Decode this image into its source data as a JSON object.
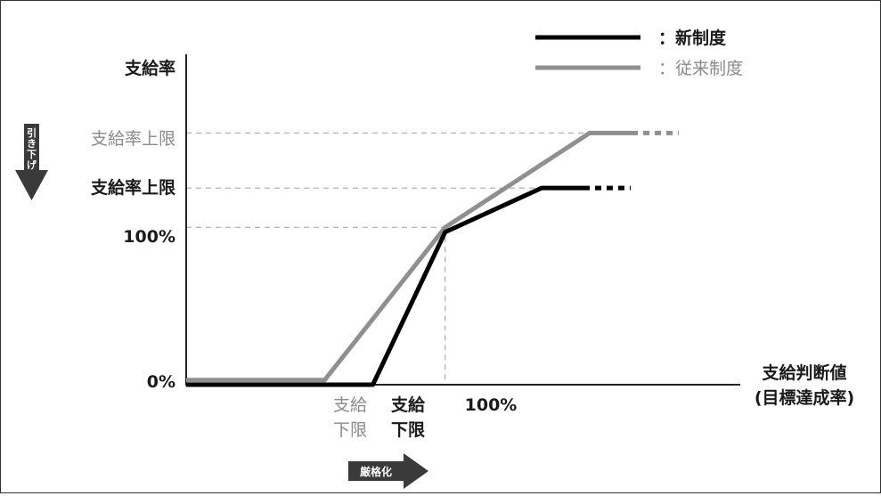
{
  "chart_data": {
    "type": "line",
    "ylabel": "支給率",
    "xlabel_line1": "支給判断値",
    "xlabel_line2": "(目標達成率)",
    "x_tick": "100%",
    "y_ticks": {
      "zero": "0%",
      "hundred": "100%",
      "cap_old": "支給率上限",
      "cap_new": "支給率上限"
    },
    "lower_limit_old": [
      "支給",
      "下限"
    ],
    "lower_limit_new": [
      "支給",
      "下限"
    ],
    "y_arrow_label": [
      "引",
      "き",
      "下",
      "げ"
    ],
    "x_arrow_label": "厳格化",
    "series": [
      {
        "name": "：新制度",
        "color": "#000000",
        "x": [
          0,
          31,
          43,
          59,
          67
        ],
        "y": [
          0,
          0,
          97,
          125,
          125
        ]
      },
      {
        "name": "：従来制度",
        "color": "#8f8f8f",
        "x": [
          0,
          23,
          43,
          67,
          75
        ],
        "y": [
          3,
          3,
          100,
          160,
          160
        ]
      }
    ],
    "xlim": [
      0,
      92
    ],
    "ylim": [
      0,
      210
    ],
    "grid": false
  },
  "colors": {
    "new": "#000000",
    "old": "#8f8f8f",
    "guide": "#aaaaaa",
    "arrow": "#3a3a3a"
  }
}
